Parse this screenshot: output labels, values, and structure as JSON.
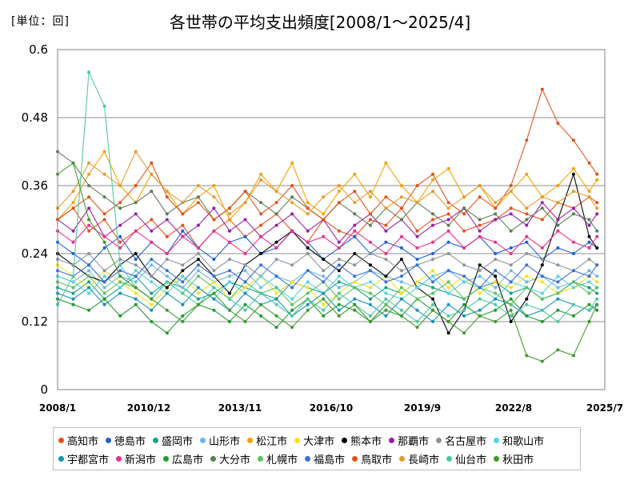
{
  "header": {
    "unit": "[単位：回]",
    "title": "各世帯の平均支出頻度[2008/1～2025/4]"
  },
  "chart_data": {
    "type": "line",
    "title": "各世帯の平均支出頻度[2008/1～2025/4]",
    "unit": "[単位：回]",
    "ylim": [
      0,
      0.6
    ],
    "y_ticks": [
      "0",
      "0.12",
      "0.24",
      "0.36",
      "0.48",
      "0.6"
    ],
    "x_ticks": [
      "2008/1",
      "2010/12",
      "2013/11",
      "2016/10",
      "2019/9",
      "2022/8",
      "2025/7"
    ],
    "x_start": "2008/1",
    "x_end": "2025/7",
    "grid": true,
    "legend_position": "bottom",
    "sampling_note": "monthly, every 6th month sampled, values approximate",
    "x": [
      "2008/1",
      "2008/7",
      "2009/1",
      "2009/7",
      "2010/1",
      "2010/7",
      "2011/1",
      "2011/7",
      "2012/1",
      "2012/7",
      "2013/1",
      "2013/7",
      "2014/1",
      "2014/7",
      "2015/1",
      "2015/7",
      "2016/1",
      "2016/7",
      "2017/1",
      "2017/7",
      "2018/1",
      "2018/7",
      "2019/1",
      "2019/7",
      "2020/1",
      "2020/7",
      "2021/1",
      "2021/7",
      "2022/1",
      "2022/7",
      "2023/1",
      "2023/7",
      "2024/1",
      "2024/7",
      "2025/1",
      "2025/4"
    ],
    "series": [
      {
        "name": "高知市",
        "color": "#e8501e",
        "values": [
          0.3,
          0.32,
          0.28,
          0.3,
          0.26,
          0.28,
          0.3,
          0.27,
          0.29,
          0.25,
          0.28,
          0.3,
          0.27,
          0.29,
          0.31,
          0.28,
          0.26,
          0.3,
          0.28,
          0.27,
          0.3,
          0.29,
          0.32,
          0.28,
          0.3,
          0.31,
          0.28,
          0.29,
          0.3,
          0.32,
          0.31,
          0.3,
          0.33,
          0.32,
          0.34,
          0.33
        ]
      },
      {
        "name": "徳島市",
        "color": "#1f5fd6",
        "values": [
          0.26,
          0.24,
          0.22,
          0.25,
          0.27,
          0.23,
          0.26,
          0.24,
          0.28,
          0.25,
          0.23,
          0.26,
          0.27,
          0.24,
          0.25,
          0.28,
          0.26,
          0.23,
          0.25,
          0.27,
          0.24,
          0.26,
          0.25,
          0.23,
          0.24,
          0.26,
          0.25,
          0.27,
          0.24,
          0.25,
          0.26,
          0.23,
          0.25,
          0.24,
          0.26,
          0.25
        ]
      },
      {
        "name": "盛岡市",
        "color": "#16a085",
        "values": [
          0.18,
          0.17,
          0.19,
          0.16,
          0.18,
          0.2,
          0.17,
          0.19,
          0.18,
          0.16,
          0.17,
          0.19,
          0.18,
          0.17,
          0.16,
          0.19,
          0.18,
          0.17,
          0.19,
          0.18,
          0.16,
          0.18,
          0.17,
          0.19,
          0.18,
          0.17,
          0.16,
          0.18,
          0.19,
          0.17,
          0.18,
          0.16,
          0.17,
          0.19,
          0.18,
          0.17
        ]
      },
      {
        "name": "山形市",
        "color": "#6cb8e8",
        "values": [
          0.2,
          0.19,
          0.21,
          0.18,
          0.2,
          0.19,
          0.22,
          0.2,
          0.18,
          0.21,
          0.19,
          0.2,
          0.21,
          0.18,
          0.2,
          0.19,
          0.21,
          0.2,
          0.18,
          0.19,
          0.21,
          0.2,
          0.19,
          0.18,
          0.2,
          0.21,
          0.19,
          0.2,
          0.18,
          0.21,
          0.19,
          0.2,
          0.18,
          0.19,
          0.21,
          0.2
        ]
      },
      {
        "name": "松江市",
        "color": "#f4a300",
        "values": [
          0.3,
          0.33,
          0.38,
          0.42,
          0.36,
          0.33,
          0.38,
          0.35,
          0.31,
          0.34,
          0.36,
          0.3,
          0.33,
          0.38,
          0.35,
          0.4,
          0.33,
          0.31,
          0.35,
          0.38,
          0.34,
          0.4,
          0.36,
          0.33,
          0.37,
          0.39,
          0.34,
          0.36,
          0.32,
          0.35,
          0.38,
          0.34,
          0.36,
          0.39,
          0.35,
          0.37
        ]
      },
      {
        "name": "大津市",
        "color": "#f7e11a",
        "values": [
          0.22,
          0.2,
          0.18,
          0.21,
          0.19,
          0.17,
          0.15,
          0.18,
          0.2,
          0.17,
          0.19,
          0.16,
          0.18,
          0.2,
          0.17,
          0.19,
          0.18,
          0.15,
          0.17,
          0.19,
          0.18,
          0.2,
          0.17,
          0.19,
          0.21,
          0.18,
          0.2,
          0.17,
          0.19,
          0.18,
          0.2,
          0.19,
          0.17,
          0.18,
          0.2,
          0.19
        ]
      },
      {
        "name": "熊本市",
        "color": "#000000",
        "values": [
          0.24,
          0.22,
          0.2,
          0.19,
          0.22,
          0.24,
          0.2,
          0.18,
          0.21,
          0.23,
          0.2,
          0.17,
          0.22,
          0.24,
          0.26,
          0.28,
          0.25,
          0.23,
          0.21,
          0.24,
          0.22,
          0.2,
          0.23,
          0.18,
          0.16,
          0.1,
          0.14,
          0.22,
          0.2,
          0.12,
          0.16,
          0.22,
          0.3,
          0.38,
          0.27,
          0.25
        ]
      },
      {
        "name": "那覇市",
        "color": "#9b1fa8",
        "values": [
          0.3,
          0.28,
          0.32,
          0.27,
          0.29,
          0.31,
          0.28,
          0.3,
          0.27,
          0.29,
          0.32,
          0.28,
          0.3,
          0.27,
          0.29,
          0.31,
          0.28,
          0.3,
          0.26,
          0.29,
          0.31,
          0.28,
          0.3,
          0.27,
          0.29,
          0.3,
          0.32,
          0.28,
          0.3,
          0.31,
          0.29,
          0.33,
          0.3,
          0.32,
          0.29,
          0.31
        ]
      },
      {
        "name": "名古屋市",
        "color": "#8a949c",
        "values": [
          0.23,
          0.22,
          0.24,
          0.21,
          0.23,
          0.22,
          0.2,
          0.23,
          0.22,
          0.24,
          0.21,
          0.23,
          0.22,
          0.2,
          0.23,
          0.22,
          0.24,
          0.21,
          0.23,
          0.22,
          0.24,
          0.23,
          0.21,
          0.22,
          0.23,
          0.24,
          0.22,
          0.21,
          0.23,
          0.22,
          0.24,
          0.23,
          0.22,
          0.21,
          0.23,
          0.22
        ]
      },
      {
        "name": "和歌山市",
        "color": "#55d3e0",
        "values": [
          0.2,
          0.19,
          0.17,
          0.2,
          0.18,
          0.21,
          0.19,
          0.17,
          0.2,
          0.18,
          0.16,
          0.19,
          0.17,
          0.2,
          0.18,
          0.16,
          0.19,
          0.17,
          0.2,
          0.18,
          0.19,
          0.17,
          0.16,
          0.18,
          0.2,
          0.17,
          0.19,
          0.18,
          0.16,
          0.19,
          0.18,
          0.17,
          0.2,
          0.18,
          0.19,
          0.18
        ]
      },
      {
        "name": "宇都宮市",
        "color": "#1493b3",
        "values": [
          0.17,
          0.16,
          0.18,
          0.15,
          0.17,
          0.16,
          0.14,
          0.17,
          0.15,
          0.18,
          0.16,
          0.14,
          0.17,
          0.15,
          0.16,
          0.13,
          0.15,
          0.17,
          0.14,
          0.16,
          0.15,
          0.13,
          0.16,
          0.14,
          0.12,
          0.15,
          0.13,
          0.14,
          0.16,
          0.15,
          0.13,
          0.14,
          0.16,
          0.15,
          0.14,
          0.15
        ]
      },
      {
        "name": "新潟市",
        "color": "#e8308c",
        "values": [
          0.28,
          0.26,
          0.29,
          0.27,
          0.25,
          0.28,
          0.26,
          0.24,
          0.27,
          0.25,
          0.28,
          0.26,
          0.24,
          0.27,
          0.25,
          0.28,
          0.26,
          0.27,
          0.25,
          0.28,
          0.26,
          0.24,
          0.27,
          0.25,
          0.26,
          0.28,
          0.25,
          0.27,
          0.26,
          0.24,
          0.27,
          0.25,
          0.28,
          0.26,
          0.25,
          0.27
        ]
      },
      {
        "name": "広島市",
        "color": "#1f9a2e",
        "values": [
          0.16,
          0.15,
          0.14,
          0.16,
          0.13,
          0.15,
          0.12,
          0.1,
          0.13,
          0.15,
          0.14,
          0.12,
          0.15,
          0.13,
          0.11,
          0.14,
          0.16,
          0.13,
          0.15,
          0.14,
          0.12,
          0.15,
          0.13,
          0.16,
          0.14,
          0.12,
          0.15,
          0.13,
          0.14,
          0.16,
          0.13,
          0.12,
          0.14,
          0.13,
          0.15,
          0.14
        ]
      },
      {
        "name": "大分市",
        "color": "#5b7d56",
        "values": [
          0.42,
          0.4,
          0.36,
          0.34,
          0.32,
          0.33,
          0.35,
          0.31,
          0.33,
          0.34,
          0.3,
          0.32,
          0.35,
          0.33,
          0.31,
          0.34,
          0.32,
          0.3,
          0.33,
          0.31,
          0.29,
          0.32,
          0.3,
          0.33,
          0.31,
          0.29,
          0.32,
          0.3,
          0.31,
          0.28,
          0.3,
          0.32,
          0.29,
          0.31,
          0.3,
          0.28
        ]
      },
      {
        "name": "札幌市",
        "color": "#5ec15a",
        "values": [
          0.19,
          0.18,
          0.2,
          0.17,
          0.19,
          0.18,
          0.16,
          0.19,
          0.17,
          0.2,
          0.18,
          0.16,
          0.19,
          0.17,
          0.18,
          0.15,
          0.17,
          0.19,
          0.16,
          0.18,
          0.17,
          0.15,
          0.18,
          0.16,
          0.17,
          0.19,
          0.16,
          0.18,
          0.17,
          0.15,
          0.18,
          0.16,
          0.17,
          0.19,
          0.17,
          0.18
        ]
      },
      {
        "name": "福島市",
        "color": "#3a6fd8",
        "values": [
          0.21,
          0.2,
          0.22,
          0.19,
          0.21,
          0.2,
          0.23,
          0.21,
          0.19,
          0.22,
          0.2,
          0.21,
          0.19,
          0.22,
          0.2,
          0.18,
          0.21,
          0.19,
          0.22,
          0.2,
          0.21,
          0.19,
          0.2,
          0.22,
          0.19,
          0.21,
          0.2,
          0.18,
          0.21,
          0.19,
          0.22,
          0.2,
          0.19,
          0.21,
          0.2,
          0.22
        ]
      },
      {
        "name": "鳥取市",
        "color": "#e0541a",
        "values": [
          0.3,
          0.32,
          0.34,
          0.31,
          0.33,
          0.36,
          0.4,
          0.34,
          0.31,
          0.33,
          0.3,
          0.32,
          0.35,
          0.31,
          0.33,
          0.36,
          0.32,
          0.3,
          0.33,
          0.35,
          0.31,
          0.34,
          0.32,
          0.36,
          0.38,
          0.33,
          0.31,
          0.34,
          0.32,
          0.36,
          0.44,
          0.53,
          0.47,
          0.44,
          0.4,
          0.38
        ]
      },
      {
        "name": "長崎市",
        "color": "#e39b2c",
        "values": [
          0.32,
          0.35,
          0.4,
          0.38,
          0.36,
          0.42,
          0.38,
          0.35,
          0.33,
          0.36,
          0.34,
          0.31,
          0.33,
          0.37,
          0.35,
          0.33,
          0.31,
          0.34,
          0.36,
          0.33,
          0.35,
          0.32,
          0.34,
          0.33,
          0.35,
          0.32,
          0.34,
          0.36,
          0.33,
          0.35,
          0.32,
          0.34,
          0.33,
          0.35,
          0.34,
          0.32
        ]
      },
      {
        "name": "仙台市",
        "color": "#4fc7a3",
        "values": [
          0.15,
          0.2,
          0.56,
          0.5,
          0.22,
          0.18,
          0.16,
          0.19,
          0.17,
          0.15,
          0.18,
          0.16,
          0.14,
          0.17,
          0.15,
          0.13,
          0.16,
          0.14,
          0.17,
          0.15,
          0.13,
          0.16,
          0.14,
          0.12,
          0.15,
          0.13,
          0.14,
          0.16,
          0.15,
          0.13,
          0.15,
          0.14,
          0.12,
          0.15,
          0.14,
          0.16
        ]
      },
      {
        "name": "秋田市",
        "color": "#3f9b2a",
        "values": [
          0.38,
          0.4,
          0.3,
          0.26,
          0.2,
          0.18,
          0.16,
          0.14,
          0.12,
          0.15,
          0.17,
          0.14,
          0.12,
          0.15,
          0.13,
          0.11,
          0.14,
          0.16,
          0.13,
          0.15,
          0.12,
          0.14,
          0.13,
          0.11,
          0.14,
          0.12,
          0.1,
          0.13,
          0.12,
          0.14,
          0.06,
          0.05,
          0.07,
          0.06,
          0.12,
          0.15
        ]
      }
    ]
  }
}
